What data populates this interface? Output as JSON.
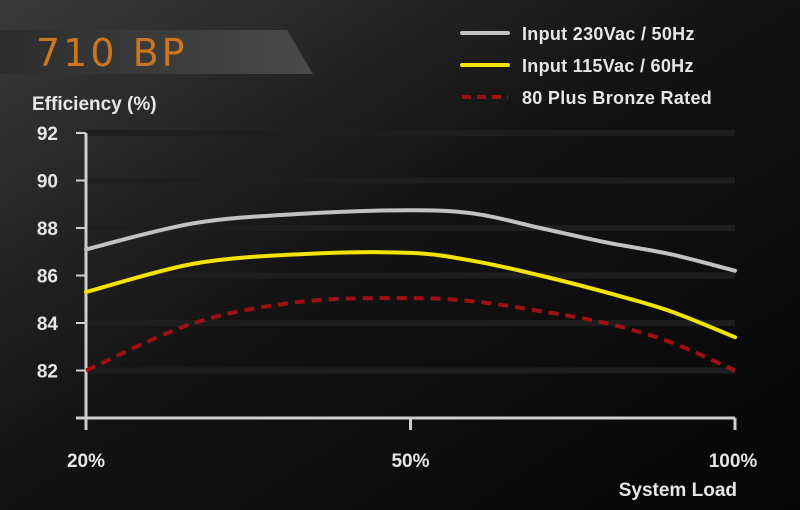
{
  "colors": {
    "title_text": "#c9761e",
    "grid": "#1e1e1e",
    "axis": "#cfcfcf",
    "text": "#e6e6e6"
  },
  "chart_data": {
    "type": "line",
    "title": "710 BP",
    "ylabel": "Efficiency (%)",
    "xlabel": "System Load",
    "x_ticks": [
      "20%",
      "50%",
      "100%"
    ],
    "y_ticks": [
      92,
      90,
      88,
      86,
      84,
      82
    ],
    "ylim": [
      80,
      92
    ],
    "legend_position": "top-right",
    "series": [
      {
        "name": "Input 230Vac / 50Hz",
        "color": "#c2c2c2",
        "style": "solid",
        "points": [
          [
            20,
            87.1
          ],
          [
            30,
            88.2
          ],
          [
            40,
            88.6
          ],
          [
            50,
            88.75
          ],
          [
            60,
            88.6
          ],
          [
            70,
            88.0
          ],
          [
            80,
            87.4
          ],
          [
            90,
            86.9
          ],
          [
            100,
            86.2
          ]
        ]
      },
      {
        "name": "Input 115Vac / 60Hz",
        "color": "#f2e400",
        "style": "solid",
        "points": [
          [
            20,
            85.3
          ],
          [
            30,
            86.5
          ],
          [
            40,
            86.9
          ],
          [
            50,
            86.95
          ],
          [
            60,
            86.6
          ],
          [
            70,
            86.0
          ],
          [
            80,
            85.3
          ],
          [
            90,
            84.5
          ],
          [
            100,
            83.4
          ]
        ]
      },
      {
        "name": "80 Plus Bronze Rated",
        "color": "#a01010",
        "style": "dashed",
        "points": [
          [
            20,
            82.0
          ],
          [
            30,
            84.0
          ],
          [
            40,
            84.9
          ],
          [
            50,
            85.05
          ],
          [
            60,
            84.9
          ],
          [
            70,
            84.5
          ],
          [
            80,
            84.0
          ],
          [
            90,
            83.2
          ],
          [
            100,
            82.0
          ]
        ]
      }
    ]
  }
}
